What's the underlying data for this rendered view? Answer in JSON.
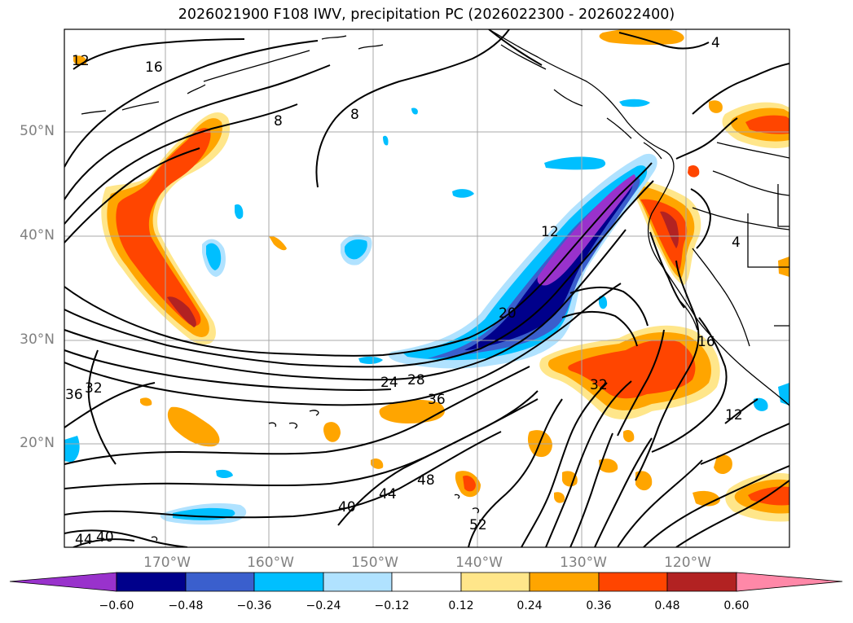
{
  "title": "2026021900 F108 IWV, precipitation PC (2026022300 - 2026022400)",
  "map": {
    "lat_labels": [
      "50°N",
      "40°N",
      "30°N",
      "20°N"
    ],
    "lon_labels": [
      "170°W",
      "160°W",
      "150°W",
      "140°W",
      "130°W",
      "120°W"
    ],
    "contour_labels": [
      "16",
      "8",
      "8",
      "4",
      "4",
      "12",
      "20",
      "24",
      "28",
      "36",
      "32",
      "36",
      "32",
      "16",
      "12",
      "40",
      "44",
      "48",
      "52",
      "44",
      "40",
      "12"
    ],
    "colors": {
      "grid": "#a8a8a8",
      "coast": "#000000",
      "contour": "#000000"
    }
  },
  "colorbar": {
    "ticks": [
      "−0.60",
      "−0.48",
      "−0.36",
      "−0.24",
      "−0.12",
      "0.12",
      "0.24",
      "0.36",
      "0.48",
      "0.60"
    ],
    "colors": [
      "#9932cc",
      "#00008b",
      "#3a5fcd",
      "#00bfff",
      "#b0e2ff",
      "#ffffff",
      "#ffe68a",
      "#ffa500",
      "#ff4500",
      "#b22222",
      "#ff88a8"
    ]
  }
}
